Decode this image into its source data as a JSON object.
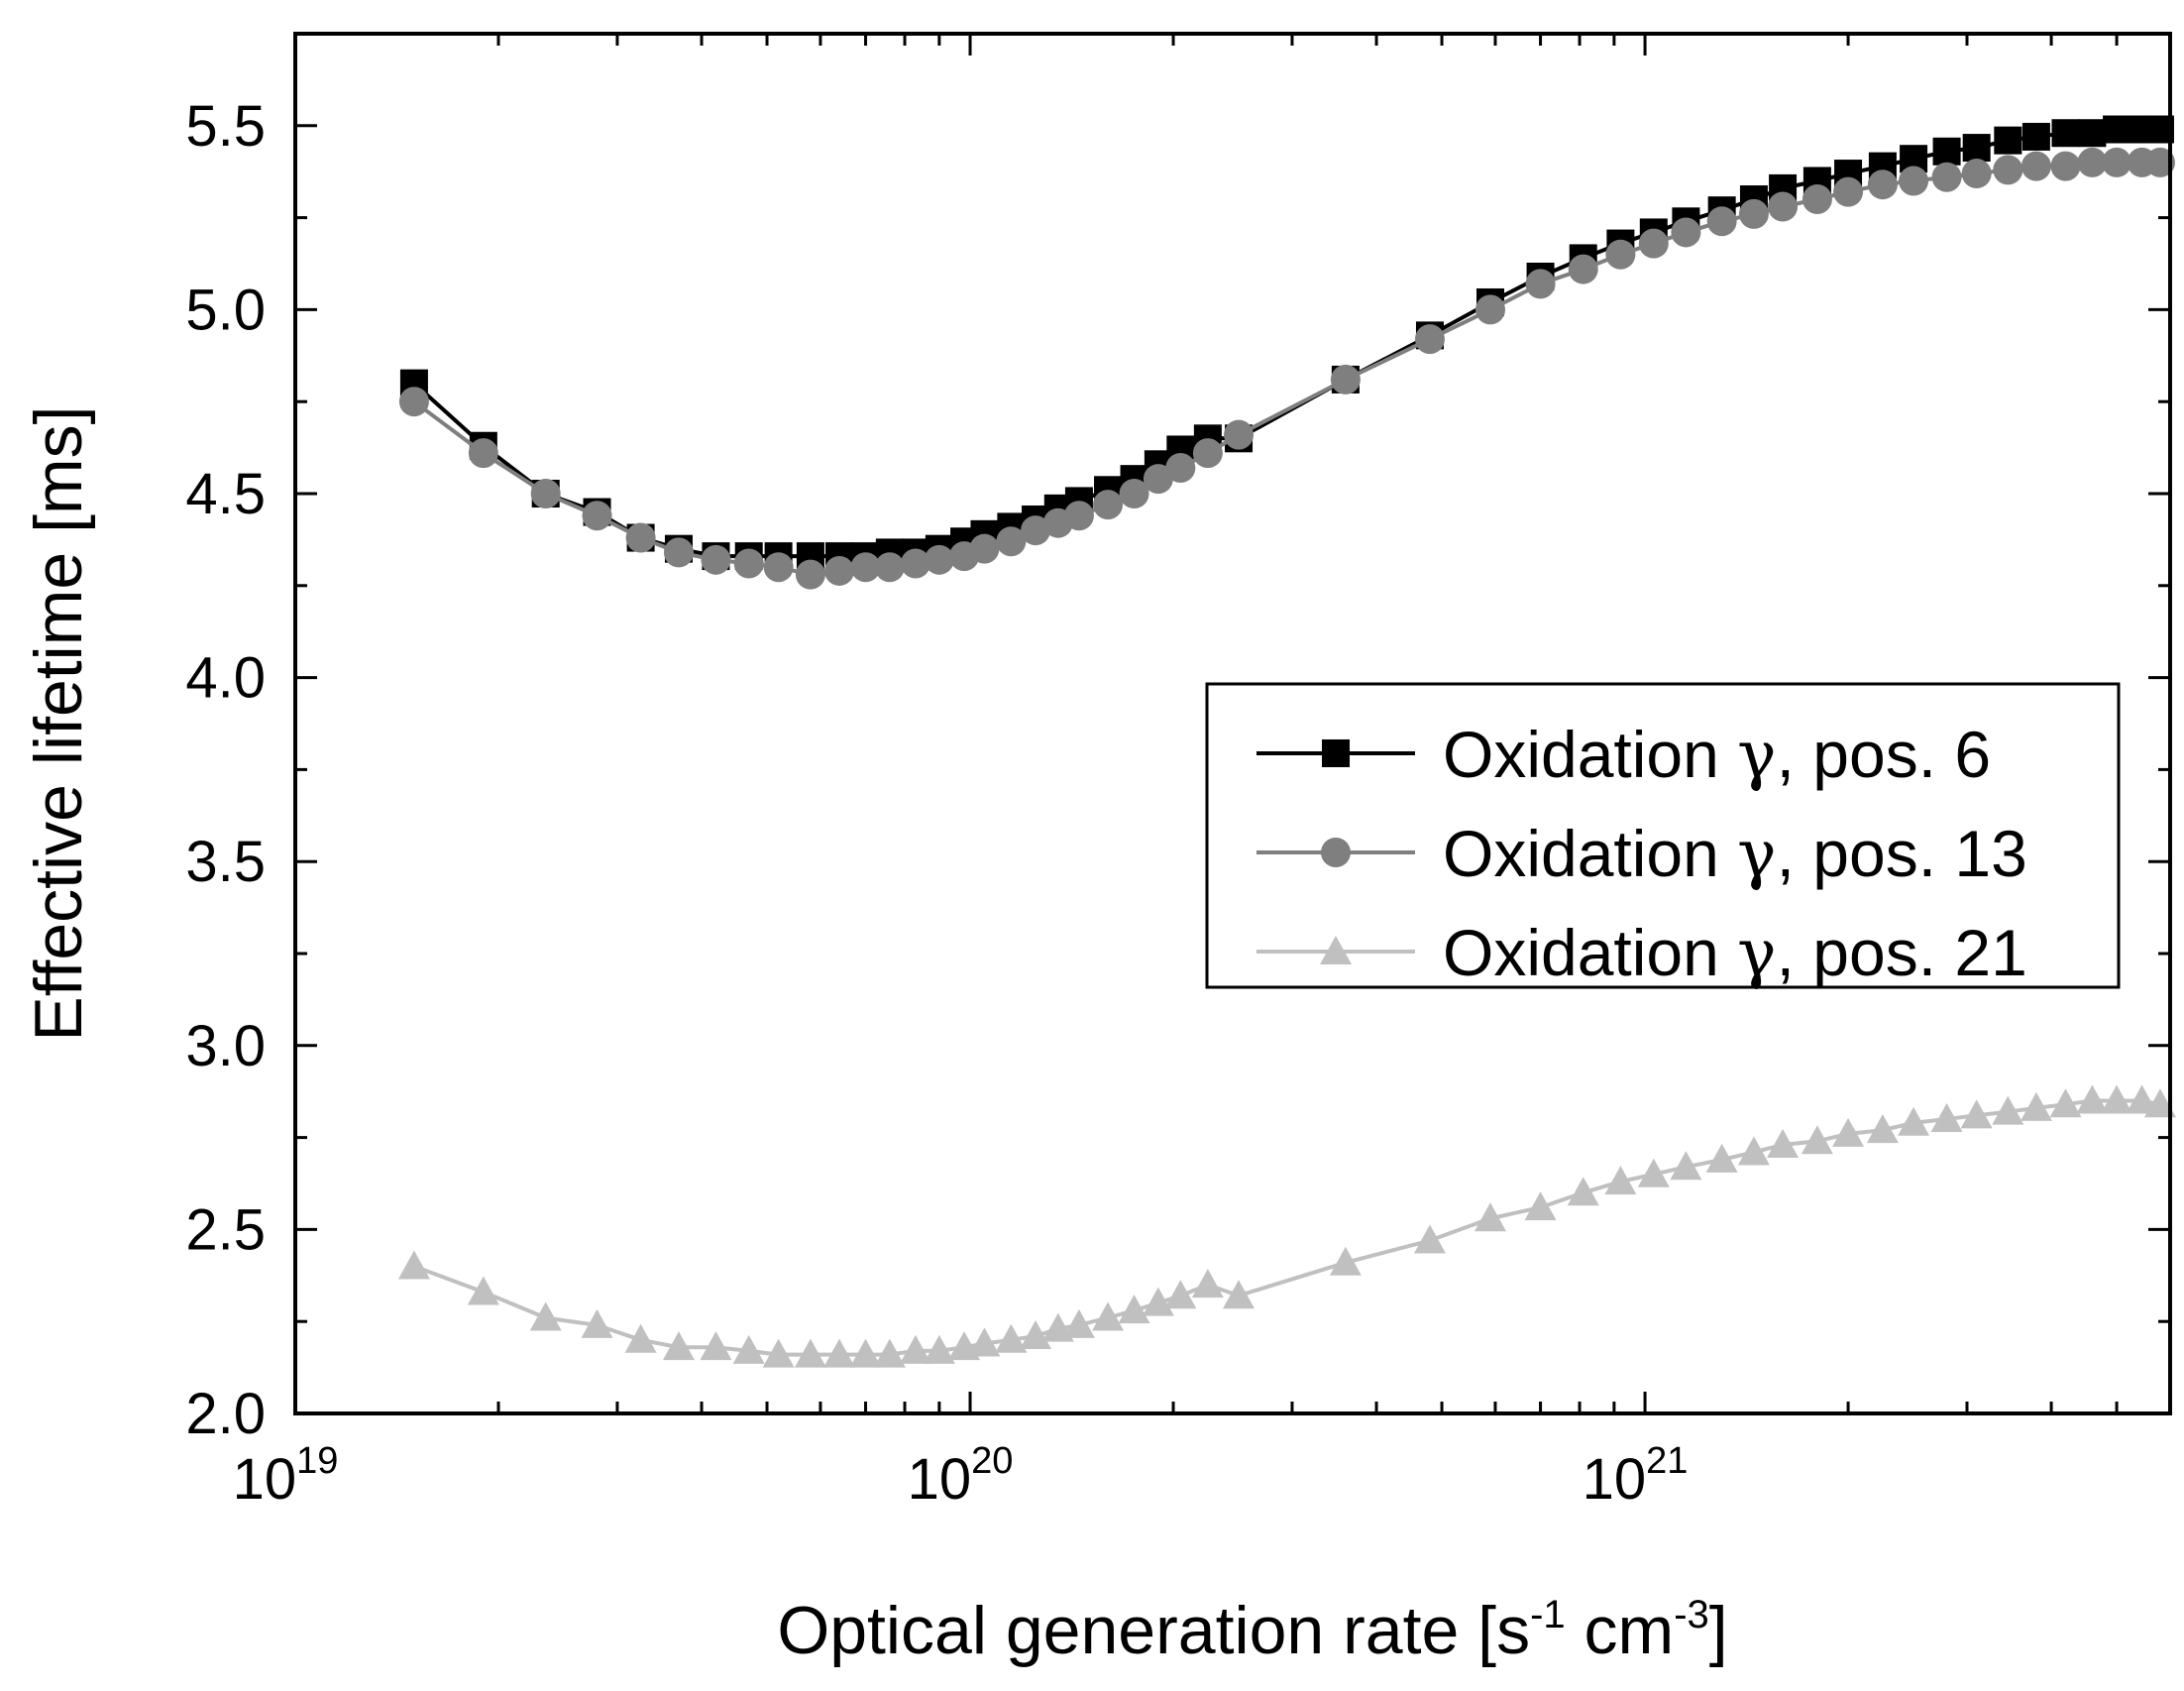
{
  "chart_data": {
    "type": "line",
    "xscale": "log",
    "xlabel": "Optical generation rate [s-1 cm-3]",
    "xlabel_parts": {
      "base": "Optical generation rate [s",
      "exp1": "-1",
      "mid": " cm",
      "exp2": "-3",
      "end": "]"
    },
    "ylabel": "Effective lifetime [ms]",
    "xlim": [
      1e+19,
      6e+21
    ],
    "ylim": [
      2.0,
      5.75
    ],
    "x_ticks": [
      {
        "value": 1e+19,
        "base": "10",
        "exp": "19"
      },
      {
        "value": 1e+20,
        "base": "10",
        "exp": "20"
      },
      {
        "value": 1e+21,
        "base": "10",
        "exp": "21"
      }
    ],
    "y_ticks": [
      {
        "value": 2.0,
        "label": "2.0"
      },
      {
        "value": 2.5,
        "label": "2.5"
      },
      {
        "value": 3.0,
        "label": "3.0"
      },
      {
        "value": 3.5,
        "label": "3.5"
      },
      {
        "value": 4.0,
        "label": "4.0"
      },
      {
        "value": 4.5,
        "label": "4.5"
      },
      {
        "value": 5.0,
        "label": "5.0"
      },
      {
        "value": 5.5,
        "label": "5.5"
      }
    ],
    "legend_position": "center-right",
    "series": [
      {
        "name": "Oxidation γ, pos. 6",
        "name_prefix": "Oxidation ",
        "greek": "γ",
        "name_suffix": ", pos. 6",
        "marker": "square",
        "color": "#000000",
        "points": [
          [
            1.5e+19,
            4.8
          ],
          [
            1.9e+19,
            4.63
          ],
          [
            2.35e+19,
            4.5
          ],
          [
            2.8e+19,
            4.45
          ],
          [
            3.25e+19,
            4.38
          ],
          [
            3.7e+19,
            4.35
          ],
          [
            4.2e+19,
            4.33
          ],
          [
            4.7e+19,
            4.33
          ],
          [
            5.2e+19,
            4.33
          ],
          [
            5.8e+19,
            4.33
          ],
          [
            6.4e+19,
            4.33
          ],
          [
            7e+19,
            4.33
          ],
          [
            7.6e+19,
            4.34
          ],
          [
            8.3e+19,
            4.34
          ],
          [
            9e+19,
            4.35
          ],
          [
            9.8e+19,
            4.37
          ],
          [
            1.05e+20,
            4.39
          ],
          [
            1.15e+20,
            4.41
          ],
          [
            1.25e+20,
            4.43
          ],
          [
            1.35e+20,
            4.46
          ],
          [
            1.45e+20,
            4.48
          ],
          [
            1.6e+20,
            4.51
          ],
          [
            1.75e+20,
            4.54
          ],
          [
            1.9e+20,
            4.58
          ],
          [
            2.05e+20,
            4.62
          ],
          [
            2.25e+20,
            4.65
          ],
          [
            2.5e+20,
            4.65
          ],
          [
            3.6e+20,
            4.81
          ],
          [
            4.8e+20,
            4.93
          ],
          [
            5.9e+20,
            5.02
          ],
          [
            7e+20,
            5.09
          ],
          [
            8.1e+20,
            5.14
          ],
          [
            9.2e+20,
            5.18
          ],
          [
            1.03e+21,
            5.21
          ],
          [
            1.15e+21,
            5.24
          ],
          [
            1.3e+21,
            5.27
          ],
          [
            1.45e+21,
            5.3
          ],
          [
            1.6e+21,
            5.33
          ],
          [
            1.8e+21,
            5.35
          ],
          [
            2e+21,
            5.37
          ],
          [
            2.25e+21,
            5.39
          ],
          [
            2.5e+21,
            5.41
          ],
          [
            2.8e+21,
            5.43
          ],
          [
            3.1e+21,
            5.44
          ],
          [
            3.45e+21,
            5.46
          ],
          [
            3.8e+21,
            5.47
          ],
          [
            4.2e+21,
            5.48
          ],
          [
            4.6e+21,
            5.48
          ],
          [
            5e+21,
            5.49
          ],
          [
            5.45e+21,
            5.49
          ],
          [
            5.8e+21,
            5.49
          ]
        ]
      },
      {
        "name": "Oxidation γ, pos. 13",
        "name_prefix": "Oxidation ",
        "greek": "γ",
        "name_suffix": ", pos. 13",
        "marker": "circle",
        "color": "#7f7f7f",
        "points": [
          [
            1.5e+19,
            4.75
          ],
          [
            1.9e+19,
            4.61
          ],
          [
            2.35e+19,
            4.5
          ],
          [
            2.8e+19,
            4.44
          ],
          [
            3.25e+19,
            4.38
          ],
          [
            3.7e+19,
            4.34
          ],
          [
            4.2e+19,
            4.32
          ],
          [
            4.7e+19,
            4.31
          ],
          [
            5.2e+19,
            4.3
          ],
          [
            5.8e+19,
            4.28
          ],
          [
            6.4e+19,
            4.29
          ],
          [
            7e+19,
            4.3
          ],
          [
            7.6e+19,
            4.3
          ],
          [
            8.3e+19,
            4.31
          ],
          [
            9e+19,
            4.32
          ],
          [
            9.8e+19,
            4.33
          ],
          [
            1.05e+20,
            4.35
          ],
          [
            1.15e+20,
            4.37
          ],
          [
            1.25e+20,
            4.4
          ],
          [
            1.35e+20,
            4.42
          ],
          [
            1.45e+20,
            4.44
          ],
          [
            1.6e+20,
            4.47
          ],
          [
            1.75e+20,
            4.5
          ],
          [
            1.9e+20,
            4.54
          ],
          [
            2.05e+20,
            4.57
          ],
          [
            2.25e+20,
            4.61
          ],
          [
            2.5e+20,
            4.66
          ],
          [
            3.6e+20,
            4.81
          ],
          [
            4.8e+20,
            4.92
          ],
          [
            5.9e+20,
            5.0
          ],
          [
            7e+20,
            5.07
          ],
          [
            8.1e+20,
            5.11
          ],
          [
            9.2e+20,
            5.15
          ],
          [
            1.03e+21,
            5.18
          ],
          [
            1.15e+21,
            5.21
          ],
          [
            1.3e+21,
            5.24
          ],
          [
            1.45e+21,
            5.26
          ],
          [
            1.6e+21,
            5.28
          ],
          [
            1.8e+21,
            5.3
          ],
          [
            2e+21,
            5.32
          ],
          [
            2.25e+21,
            5.34
          ],
          [
            2.5e+21,
            5.35
          ],
          [
            2.8e+21,
            5.36
          ],
          [
            3.1e+21,
            5.37
          ],
          [
            3.45e+21,
            5.38
          ],
          [
            3.8e+21,
            5.39
          ],
          [
            4.2e+21,
            5.39
          ],
          [
            4.6e+21,
            5.4
          ],
          [
            5e+21,
            5.4
          ],
          [
            5.45e+21,
            5.4
          ],
          [
            5.8e+21,
            5.4
          ]
        ]
      },
      {
        "name": "Oxidation γ, pos. 21",
        "name_prefix": "Oxidation ",
        "greek": "γ",
        "name_suffix": ", pos. 21",
        "marker": "triangle",
        "color": "#c0c0c0",
        "points": [
          [
            1.5e+19,
            2.4
          ],
          [
            1.9e+19,
            2.33
          ],
          [
            2.35e+19,
            2.26
          ],
          [
            2.8e+19,
            2.24
          ],
          [
            3.25e+19,
            2.2
          ],
          [
            3.7e+19,
            2.18
          ],
          [
            4.2e+19,
            2.18
          ],
          [
            4.7e+19,
            2.17
          ],
          [
            5.2e+19,
            2.16
          ],
          [
            5.8e+19,
            2.16
          ],
          [
            6.4e+19,
            2.16
          ],
          [
            7e+19,
            2.16
          ],
          [
            7.6e+19,
            2.16
          ],
          [
            8.3e+19,
            2.17
          ],
          [
            9e+19,
            2.17
          ],
          [
            9.8e+19,
            2.18
          ],
          [
            1.05e+20,
            2.19
          ],
          [
            1.15e+20,
            2.2
          ],
          [
            1.25e+20,
            2.21
          ],
          [
            1.35e+20,
            2.23
          ],
          [
            1.45e+20,
            2.24
          ],
          [
            1.6e+20,
            2.26
          ],
          [
            1.75e+20,
            2.28
          ],
          [
            1.9e+20,
            2.3
          ],
          [
            2.05e+20,
            2.32
          ],
          [
            2.25e+20,
            2.35
          ],
          [
            2.5e+20,
            2.32
          ],
          [
            3.6e+20,
            2.41
          ],
          [
            4.8e+20,
            2.47
          ],
          [
            5.9e+20,
            2.53
          ],
          [
            7e+20,
            2.56
          ],
          [
            8.1e+20,
            2.6
          ],
          [
            9.2e+20,
            2.63
          ],
          [
            1.03e+21,
            2.65
          ],
          [
            1.15e+21,
            2.67
          ],
          [
            1.3e+21,
            2.69
          ],
          [
            1.45e+21,
            2.71
          ],
          [
            1.6e+21,
            2.73
          ],
          [
            1.8e+21,
            2.74
          ],
          [
            2e+21,
            2.76
          ],
          [
            2.25e+21,
            2.77
          ],
          [
            2.5e+21,
            2.79
          ],
          [
            2.8e+21,
            2.8
          ],
          [
            3.1e+21,
            2.81
          ],
          [
            3.45e+21,
            2.82
          ],
          [
            3.8e+21,
            2.83
          ],
          [
            4.2e+21,
            2.84
          ],
          [
            4.6e+21,
            2.85
          ],
          [
            5e+21,
            2.85
          ],
          [
            5.45e+21,
            2.85
          ],
          [
            5.8e+21,
            2.84
          ]
        ]
      }
    ]
  }
}
